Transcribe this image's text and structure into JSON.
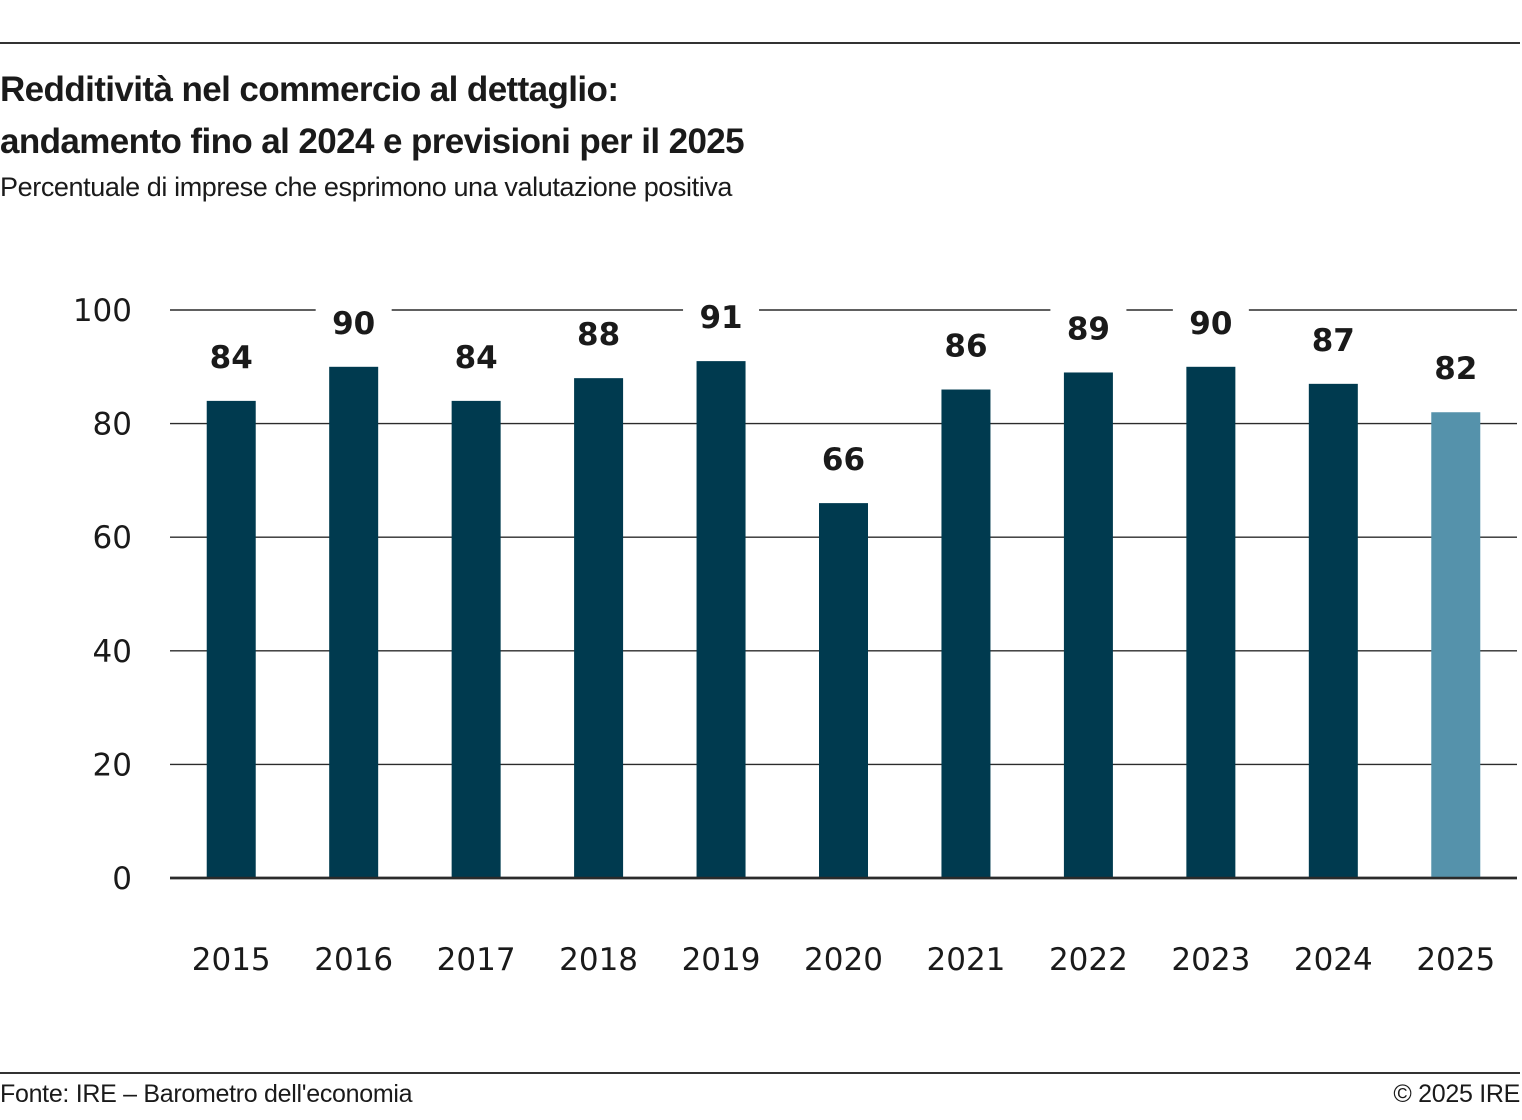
{
  "header": {
    "title_line1": "Redditività nel commercio al dettaglio:",
    "title_line2": "andamento fino al 2024 e previsioni per il 2025",
    "subtitle": "Percentuale di imprese che esprimono una valutazione positiva"
  },
  "footer": {
    "source": "Fonte: IRE – Barometro dell'economia",
    "copyright": "© 2025 IRE"
  },
  "chart_data": {
    "type": "bar",
    "categories": [
      "2015",
      "2016",
      "2017",
      "2018",
      "2019",
      "2020",
      "2021",
      "2022",
      "2023",
      "2024",
      "2025"
    ],
    "values": [
      84,
      90,
      84,
      88,
      91,
      66,
      86,
      89,
      90,
      87,
      82
    ],
    "value_labels": [
      "84",
      "90",
      "84",
      "88",
      "91",
      "66",
      "86",
      "89",
      "90",
      "87",
      "82"
    ],
    "forecast": [
      false,
      false,
      false,
      false,
      false,
      false,
      false,
      false,
      false,
      false,
      true
    ],
    "ylim": [
      0,
      100
    ],
    "yticks": [
      0,
      20,
      40,
      60,
      80,
      100
    ],
    "grid": true,
    "colors": {
      "actual": "#003a4f",
      "forecast": "#5592ab",
      "grid": "#2b2b2b"
    }
  }
}
